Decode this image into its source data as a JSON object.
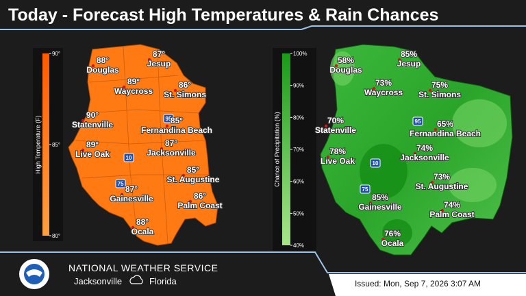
{
  "title": "Today - Forecast High Temperatures & Rain Chances",
  "maps": [
    {
      "colorbar": {
        "label": "High Temperature (F)",
        "ticks": [
          "90°",
          "85°",
          "80°"
        ]
      },
      "highways": [
        "95",
        "10",
        "75"
      ],
      "cities": [
        {
          "name": "Douglas",
          "value": "88°"
        },
        {
          "name": "Jesup",
          "value": "87°"
        },
        {
          "name": "Waycross",
          "value": "89°"
        },
        {
          "name": "St. Simons",
          "value": "86°"
        },
        {
          "name": "Fernandina Beach",
          "value": "85°"
        },
        {
          "name": "Statenville",
          "value": "90°"
        },
        {
          "name": "Jacksonville",
          "value": "87°"
        },
        {
          "name": "Live Oak",
          "value": "89°"
        },
        {
          "name": "St. Augustine",
          "value": "85°"
        },
        {
          "name": "Gainesville",
          "value": "87°"
        },
        {
          "name": "Palm Coast",
          "value": "86°"
        },
        {
          "name": "Ocala",
          "value": "88°"
        }
      ]
    },
    {
      "colorbar": {
        "label": "Chance of Precipitation (%)",
        "ticks": [
          "100%",
          "90%",
          "80%",
          "70%",
          "60%",
          "50%",
          "40%"
        ]
      },
      "highways": [
        "95",
        "10",
        "75"
      ],
      "cities": [
        {
          "name": "Douglas",
          "value": "58%"
        },
        {
          "name": "Jesup",
          "value": "85%"
        },
        {
          "name": "Waycross",
          "value": "73%"
        },
        {
          "name": "St. Simons",
          "value": "75%"
        },
        {
          "name": "Fernandina Beach",
          "value": "65%"
        },
        {
          "name": "Statenville",
          "value": "70%"
        },
        {
          "name": "Jacksonville",
          "value": "74%"
        },
        {
          "name": "Live Oak",
          "value": "78%"
        },
        {
          "name": "St. Augustine",
          "value": "73%"
        },
        {
          "name": "Gainesville",
          "value": "85%"
        },
        {
          "name": "Palm Coast",
          "value": "74%"
        },
        {
          "name": "Ocala",
          "value": "76%"
        }
      ]
    }
  ],
  "footer": {
    "agency": "NATIONAL WEATHER SERVICE",
    "office": "Jacksonville",
    "state": "Florida",
    "issued": "Issued: Mon, Sep 7, 2026 3:07 AM"
  }
}
